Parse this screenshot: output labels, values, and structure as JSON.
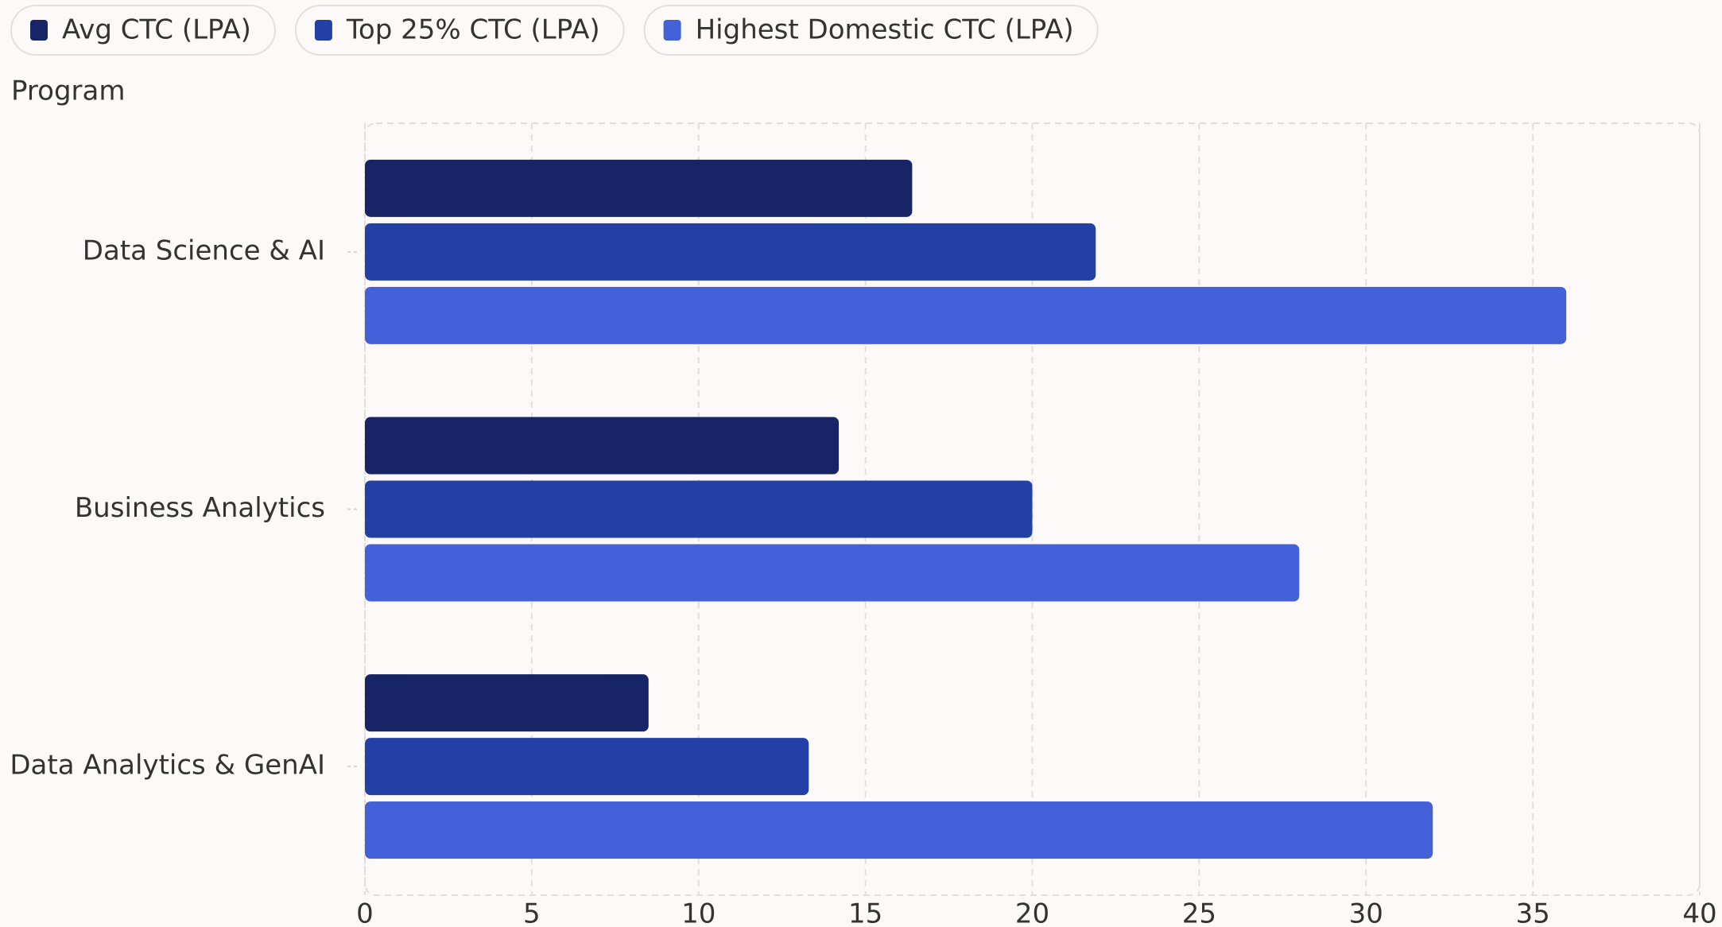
{
  "chart_data": {
    "type": "hbar",
    "y_axis_label": "Program",
    "categories": [
      "Data Science & AI",
      "Business Analytics",
      "Data Analytics & GenAI"
    ],
    "series": [
      {
        "name": "Avg CTC (LPA)",
        "color": "#172566",
        "values": [
          16.4,
          14.2,
          8.5
        ]
      },
      {
        "name": "Top 25% CTC (LPA)",
        "color": "#2340a6",
        "values": [
          21.9,
          20.0,
          13.3
        ]
      },
      {
        "name": "Highest Domestic CTC (LPA)",
        "color": "#4361d8",
        "values": [
          36.0,
          28.0,
          32.0
        ]
      }
    ],
    "xlim": [
      0,
      40
    ],
    "xticks": [
      0,
      5,
      10,
      15,
      20,
      25,
      30,
      35,
      40
    ],
    "grid": true,
    "legend": "top"
  }
}
